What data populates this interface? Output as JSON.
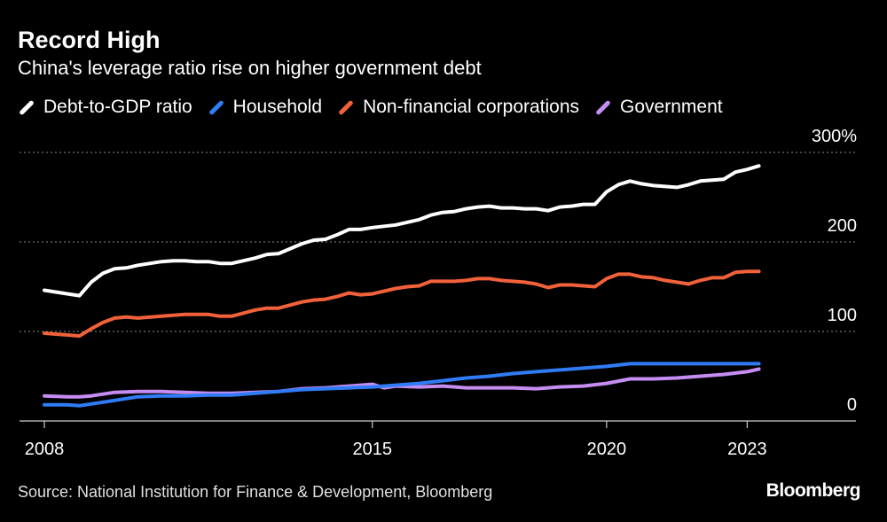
{
  "header": {
    "title": "Record High",
    "subtitle": "China's leverage ratio rise on higher government debt"
  },
  "legend": [
    {
      "label": "Debt-to-GDP ratio",
      "color": "#ffffff"
    },
    {
      "label": "Household",
      "color": "#2f7cf6"
    },
    {
      "label": "Non-financial corporations",
      "color": "#f1613a"
    },
    {
      "label": "Government",
      "color": "#c58cf2"
    }
  ],
  "footer": {
    "source": "Source: National Institution for Finance & Development, Bloomberg",
    "brand": "Bloomberg"
  },
  "chart_data": {
    "type": "line",
    "title": "Record High",
    "subtitle": "China's leverage ratio rise on higher government debt",
    "xlabel": "",
    "ylabel": "",
    "xlim": [
      2008.0,
      2025.0
    ],
    "ylim": [
      0,
      300
    ],
    "x_ticks": [
      {
        "value": 2008,
        "label": "2008"
      },
      {
        "value": 2015,
        "label": "2015"
      },
      {
        "value": 2020,
        "label": "2020"
      },
      {
        "value": 2023,
        "label": "2023"
      }
    ],
    "y_ticks": [
      {
        "value": 0,
        "label": "0"
      },
      {
        "value": 100,
        "label": "100"
      },
      {
        "value": 200,
        "label": "200"
      },
      {
        "value": 300,
        "label": "300%"
      }
    ],
    "grid": true,
    "series": [
      {
        "name": "Debt-to-GDP ratio",
        "color": "#ffffff",
        "points": [
          [
            2008.0,
            146
          ],
          [
            2008.5,
            142
          ],
          [
            2008.75,
            140
          ],
          [
            2009.0,
            155
          ],
          [
            2009.25,
            165
          ],
          [
            2009.5,
            170
          ],
          [
            2009.75,
            171
          ],
          [
            2010.0,
            174
          ],
          [
            2010.5,
            178
          ],
          [
            2010.75,
            179
          ],
          [
            2011.0,
            179
          ],
          [
            2011.25,
            178
          ],
          [
            2011.5,
            178
          ],
          [
            2011.75,
            176
          ],
          [
            2012.0,
            176
          ],
          [
            2012.5,
            182
          ],
          [
            2012.75,
            186
          ],
          [
            2013.0,
            187
          ],
          [
            2013.5,
            198
          ],
          [
            2013.75,
            202
          ],
          [
            2014.0,
            203
          ],
          [
            2014.25,
            208
          ],
          [
            2014.5,
            214
          ],
          [
            2014.75,
            214
          ],
          [
            2015.0,
            216
          ],
          [
            2015.5,
            219
          ],
          [
            2015.75,
            222
          ],
          [
            2016.0,
            225
          ],
          [
            2016.25,
            230
          ],
          [
            2016.5,
            233
          ],
          [
            2016.75,
            234
          ],
          [
            2017.0,
            237
          ],
          [
            2017.25,
            239
          ],
          [
            2017.5,
            240
          ],
          [
            2017.75,
            238
          ],
          [
            2018.0,
            238
          ],
          [
            2018.25,
            237
          ],
          [
            2018.5,
            237
          ],
          [
            2018.75,
            235
          ],
          [
            2019.0,
            239
          ],
          [
            2019.25,
            240
          ],
          [
            2019.5,
            242
          ],
          [
            2019.75,
            242
          ],
          [
            2020.0,
            256
          ],
          [
            2020.25,
            264
          ],
          [
            2020.5,
            268
          ],
          [
            2020.75,
            265
          ],
          [
            2021.0,
            263
          ],
          [
            2021.25,
            262
          ],
          [
            2021.5,
            261
          ],
          [
            2021.75,
            264
          ],
          [
            2022.0,
            268
          ],
          [
            2022.25,
            269
          ],
          [
            2022.5,
            270
          ],
          [
            2022.75,
            278
          ],
          [
            2023.0,
            281
          ],
          [
            2023.25,
            285
          ]
        ]
      },
      {
        "name": "Household",
        "color": "#2f7cf6",
        "points": [
          [
            2008.0,
            18
          ],
          [
            2008.5,
            18
          ],
          [
            2008.75,
            17
          ],
          [
            2009.0,
            19
          ],
          [
            2009.5,
            23
          ],
          [
            2010.0,
            27
          ],
          [
            2010.5,
            28
          ],
          [
            2011.0,
            28
          ],
          [
            2011.5,
            29
          ],
          [
            2012.0,
            29
          ],
          [
            2012.5,
            31
          ],
          [
            2013.0,
            33
          ],
          [
            2013.5,
            35
          ],
          [
            2014.0,
            36
          ],
          [
            2014.5,
            37
          ],
          [
            2015.0,
            38
          ],
          [
            2015.5,
            40
          ],
          [
            2016.0,
            42
          ],
          [
            2016.5,
            45
          ],
          [
            2017.0,
            48
          ],
          [
            2017.5,
            50
          ],
          [
            2018.0,
            53
          ],
          [
            2018.5,
            55
          ],
          [
            2019.0,
            57
          ],
          [
            2019.5,
            59
          ],
          [
            2020.0,
            61
          ],
          [
            2020.5,
            64
          ],
          [
            2021.0,
            64
          ],
          [
            2021.5,
            64
          ],
          [
            2022.0,
            64
          ],
          [
            2022.5,
            64
          ],
          [
            2023.0,
            64
          ],
          [
            2023.25,
            64
          ]
        ]
      },
      {
        "name": "Non-financial corporations",
        "color": "#f1613a",
        "points": [
          [
            2008.0,
            98
          ],
          [
            2008.5,
            96
          ],
          [
            2008.75,
            95
          ],
          [
            2009.0,
            103
          ],
          [
            2009.25,
            110
          ],
          [
            2009.5,
            115
          ],
          [
            2009.75,
            116
          ],
          [
            2010.0,
            115
          ],
          [
            2010.5,
            117
          ],
          [
            2010.75,
            118
          ],
          [
            2011.0,
            119
          ],
          [
            2011.25,
            119
          ],
          [
            2011.5,
            119
          ],
          [
            2011.75,
            117
          ],
          [
            2012.0,
            117
          ],
          [
            2012.5,
            124
          ],
          [
            2012.75,
            126
          ],
          [
            2013.0,
            126
          ],
          [
            2013.5,
            133
          ],
          [
            2013.75,
            135
          ],
          [
            2014.0,
            136
          ],
          [
            2014.25,
            139
          ],
          [
            2014.5,
            143
          ],
          [
            2014.75,
            141
          ],
          [
            2015.0,
            142
          ],
          [
            2015.5,
            148
          ],
          [
            2015.75,
            150
          ],
          [
            2016.0,
            151
          ],
          [
            2016.25,
            156
          ],
          [
            2016.5,
            156
          ],
          [
            2016.75,
            156
          ],
          [
            2017.0,
            157
          ],
          [
            2017.25,
            159
          ],
          [
            2017.5,
            159
          ],
          [
            2017.75,
            157
          ],
          [
            2018.0,
            156
          ],
          [
            2018.25,
            155
          ],
          [
            2018.5,
            153
          ],
          [
            2018.75,
            149
          ],
          [
            2019.0,
            152
          ],
          [
            2019.25,
            152
          ],
          [
            2019.5,
            151
          ],
          [
            2019.75,
            150
          ],
          [
            2020.0,
            159
          ],
          [
            2020.25,
            164
          ],
          [
            2020.5,
            164
          ],
          [
            2020.75,
            161
          ],
          [
            2021.0,
            160
          ],
          [
            2021.25,
            157
          ],
          [
            2021.5,
            155
          ],
          [
            2021.75,
            153
          ],
          [
            2022.0,
            157
          ],
          [
            2022.25,
            160
          ],
          [
            2022.5,
            160
          ],
          [
            2022.75,
            166
          ],
          [
            2023.0,
            167
          ],
          [
            2023.25,
            167
          ]
        ]
      },
      {
        "name": "Government",
        "color": "#c58cf2",
        "points": [
          [
            2008.0,
            28
          ],
          [
            2008.5,
            27
          ],
          [
            2008.75,
            27
          ],
          [
            2009.0,
            28
          ],
          [
            2009.5,
            32
          ],
          [
            2010.0,
            33
          ],
          [
            2010.5,
            33
          ],
          [
            2011.0,
            32
          ],
          [
            2011.5,
            31
          ],
          [
            2012.0,
            31
          ],
          [
            2012.5,
            32
          ],
          [
            2013.0,
            33
          ],
          [
            2013.5,
            36
          ],
          [
            2014.0,
            37
          ],
          [
            2014.5,
            39
          ],
          [
            2015.0,
            41
          ],
          [
            2015.25,
            37
          ],
          [
            2015.5,
            39
          ],
          [
            2016.0,
            38
          ],
          [
            2016.5,
            39
          ],
          [
            2017.0,
            37
          ],
          [
            2017.5,
            37
          ],
          [
            2018.0,
            37
          ],
          [
            2018.5,
            36
          ],
          [
            2019.0,
            38
          ],
          [
            2019.5,
            39
          ],
          [
            2020.0,
            42
          ],
          [
            2020.5,
            47
          ],
          [
            2021.0,
            47
          ],
          [
            2021.5,
            48
          ],
          [
            2022.0,
            50
          ],
          [
            2022.5,
            52
          ],
          [
            2023.0,
            55
          ],
          [
            2023.25,
            58
          ]
        ]
      }
    ]
  }
}
